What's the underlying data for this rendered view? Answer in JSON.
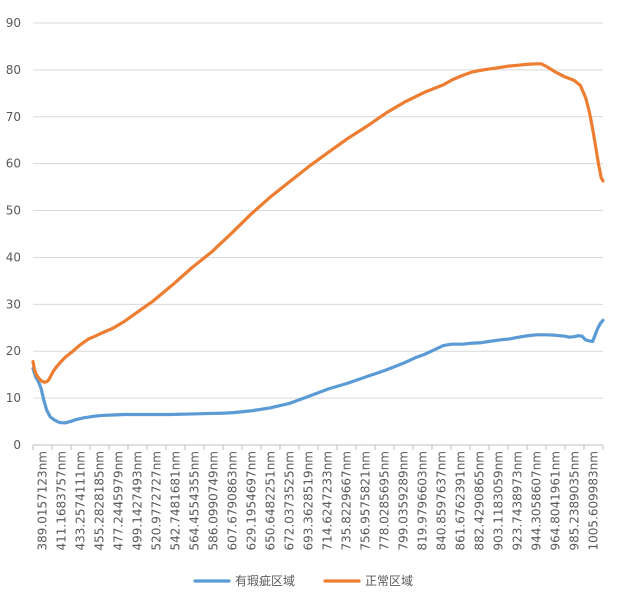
{
  "chart_data": {
    "type": "line",
    "title": "",
    "xlabel": "",
    "ylabel": "",
    "ylim": [
      0,
      90
    ],
    "yticks": [
      0,
      10,
      20,
      30,
      40,
      50,
      60,
      70,
      80,
      90
    ],
    "xlim": [
      389.0157123,
      1017
    ],
    "xticks": [
      "389.0157123nm",
      "411.1683757nm",
      "433.2574111nm",
      "455.2828185nm",
      "477.2445979nm",
      "499.1427493nm",
      "520.9772727nm",
      "542.7481681nm",
      "564.4554355nm",
      "586.0990749nm",
      "607.6790863nm",
      "629.1954697nm",
      "650.6482251nm",
      "672.0373525nm",
      "693.3628519nm",
      "714.6247233nm",
      "735.8229667nm",
      "756.9575821nm",
      "778.0285695nm",
      "799.0359289nm",
      "819.9796603nm",
      "840.8597637nm",
      "861.6762391nm",
      "882.4290865nm",
      "903.1183059nm",
      "923.7438973nm",
      "944.3058607nm",
      "964.8041961nm",
      "985.2389035nm",
      "1005.609983nm"
    ],
    "grid": true,
    "legend_position": "bottom",
    "series": [
      {
        "name": "有瑕疵区域",
        "color": "#5B9BD5",
        "x": [
          389.0,
          392.0,
          395.0,
          398.0,
          401.0,
          404.0,
          408.0,
          413.0,
          418.0,
          424.0,
          430.0,
          436.0,
          445.0,
          455.0,
          465.0,
          477.0,
          490.0,
          500.0,
          520.0,
          540.0,
          560.0,
          580.0,
          600.0,
          610.0,
          630.0,
          650.0,
          672.0,
          693.0,
          715.0,
          736.0,
          757.0,
          778.0,
          799.0,
          810.0,
          820.0,
          830.0,
          841.0,
          850.0,
          862.0,
          872.0,
          882.0,
          892.0,
          903.0,
          913.0,
          924.0,
          934.0,
          944.0,
          955.0,
          965.0,
          975.0,
          980.0,
          985.0,
          990.0,
          994.0,
          998.0,
          1002.0,
          1005.6,
          1008.0,
          1011.0,
          1014.0,
          1017.0
        ],
        "values": [
          16.3,
          14.5,
          13.5,
          12.0,
          9.5,
          7.5,
          6.0,
          5.3,
          4.8,
          4.7,
          5.0,
          5.4,
          5.8,
          6.1,
          6.3,
          6.4,
          6.5,
          6.5,
          6.5,
          6.5,
          6.6,
          6.7,
          6.8,
          6.9,
          7.3,
          7.9,
          8.9,
          10.4,
          12.0,
          13.2,
          14.6,
          16.0,
          17.6,
          18.6,
          19.3,
          20.2,
          21.2,
          21.5,
          21.5,
          21.7,
          21.8,
          22.1,
          22.4,
          22.6,
          23.0,
          23.3,
          23.5,
          23.5,
          23.4,
          23.2,
          23.0,
          23.1,
          23.3,
          23.2,
          22.4,
          22.2,
          22.1,
          23.3,
          24.8,
          25.9,
          26.6
        ]
      },
      {
        "name": "正常区域",
        "color": "#ED7D31",
        "x": [
          389.0,
          390.5,
          392.0,
          394.0,
          396.0,
          398.0,
          400.0,
          402.0,
          404.0,
          406.0,
          408.0,
          411.0,
          415.0,
          420.0,
          425.0,
          433.0,
          440.0,
          450.0,
          455.0,
          465.0,
          477.0,
          490.0,
          500.0,
          520.0,
          543.0,
          564.0,
          586.0,
          608.0,
          629.0,
          650.0,
          672.0,
          693.0,
          715.0,
          736.0,
          757.0,
          778.0,
          799.0,
          820.0,
          841.0,
          851.0,
          862.0,
          872.0,
          882.0,
          892.0,
          903.0,
          913.0,
          924.0,
          934.0,
          944.0,
          949.0,
          955.0,
          965.0,
          975.0,
          985.0,
          992.0,
          998.0,
          1002.0,
          1006.0,
          1009.0,
          1012.0,
          1015.0,
          1017.0
        ],
        "values": [
          17.8,
          16.2,
          15.3,
          14.6,
          14.1,
          13.7,
          13.5,
          13.4,
          13.5,
          13.8,
          14.5,
          15.6,
          16.7,
          17.8,
          18.8,
          20.0,
          21.2,
          22.6,
          23.0,
          23.9,
          24.9,
          26.4,
          27.8,
          30.5,
          34.2,
          37.8,
          41.2,
          45.2,
          49.2,
          52.8,
          56.2,
          59.4,
          62.5,
          65.4,
          68.0,
          70.8,
          73.2,
          75.2,
          76.8,
          77.9,
          78.8,
          79.5,
          79.9,
          80.2,
          80.5,
          80.8,
          81.0,
          81.2,
          81.3,
          81.3,
          80.7,
          79.5,
          78.5,
          77.8,
          76.7,
          74.0,
          71.0,
          67.0,
          63.5,
          60.0,
          57.0,
          56.3
        ]
      }
    ]
  }
}
